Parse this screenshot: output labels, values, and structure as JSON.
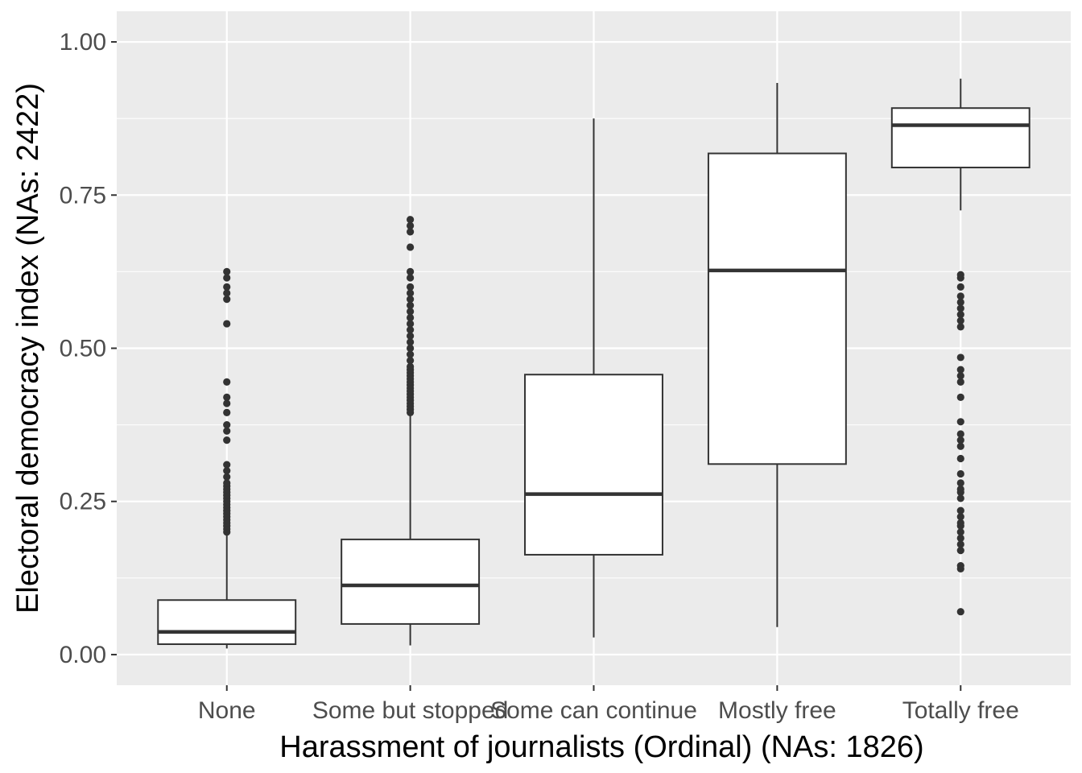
{
  "chart_data": {
    "type": "boxplot",
    "xlabel": "Harassment of journalists (Ordinal) (NAs: 1826)",
    "ylabel": "Electoral democracy index (NAs: 2422)",
    "ylim": [
      -0.05,
      1.05
    ],
    "yticks": [
      0.0,
      0.25,
      0.5,
      0.75,
      1.0
    ],
    "ytick_labels": [
      "0.00",
      "0.25",
      "0.50",
      "0.75",
      "1.00"
    ],
    "grid": true,
    "colors": {
      "panel_background": "#ebebeb",
      "grid": "#ffffff",
      "box_fill": "#ffffff",
      "box_line": "#333333",
      "outlier": "#333333"
    },
    "categories": [
      "None",
      "Some but stopped",
      "Some can continue",
      "Mostly free",
      "Totally free"
    ],
    "boxes": [
      {
        "category": "None",
        "whisker_low": 0.01,
        "q1": 0.017,
        "median": 0.037,
        "q3": 0.089,
        "whisker_high": 0.195,
        "outliers": [
          0.2,
          0.205,
          0.21,
          0.215,
          0.22,
          0.225,
          0.23,
          0.235,
          0.24,
          0.245,
          0.25,
          0.255,
          0.26,
          0.265,
          0.27,
          0.275,
          0.28,
          0.29,
          0.3,
          0.31,
          0.35,
          0.365,
          0.375,
          0.395,
          0.41,
          0.42,
          0.445,
          0.54,
          0.58,
          0.59,
          0.6,
          0.615,
          0.625
        ]
      },
      {
        "category": "Some but stopped",
        "whisker_low": 0.015,
        "q1": 0.05,
        "median": 0.113,
        "q3": 0.188,
        "whisker_high": 0.395,
        "outliers": [
          0.395,
          0.4,
          0.405,
          0.41,
          0.415,
          0.42,
          0.425,
          0.43,
          0.435,
          0.44,
          0.445,
          0.45,
          0.455,
          0.46,
          0.465,
          0.47,
          0.48,
          0.49,
          0.5,
          0.51,
          0.52,
          0.53,
          0.54,
          0.55,
          0.56,
          0.57,
          0.58,
          0.59,
          0.6,
          0.615,
          0.625,
          0.665,
          0.69,
          0.7,
          0.71
        ]
      },
      {
        "category": "Some can continue",
        "whisker_low": 0.028,
        "q1": 0.163,
        "median": 0.262,
        "q3": 0.457,
        "whisker_high": 0.875,
        "outliers": []
      },
      {
        "category": "Mostly free",
        "whisker_low": 0.045,
        "q1": 0.311,
        "median": 0.627,
        "q3": 0.818,
        "whisker_high": 0.933,
        "outliers": []
      },
      {
        "category": "Totally free",
        "whisker_low": 0.725,
        "q1": 0.795,
        "median": 0.864,
        "q3": 0.892,
        "whisker_high": 0.94,
        "outliers": [
          0.07,
          0.14,
          0.145,
          0.17,
          0.18,
          0.19,
          0.2,
          0.21,
          0.215,
          0.225,
          0.235,
          0.255,
          0.265,
          0.27,
          0.28,
          0.295,
          0.32,
          0.34,
          0.35,
          0.36,
          0.38,
          0.42,
          0.445,
          0.455,
          0.465,
          0.485,
          0.535,
          0.545,
          0.555,
          0.565,
          0.575,
          0.585,
          0.6,
          0.615,
          0.62
        ]
      }
    ]
  }
}
